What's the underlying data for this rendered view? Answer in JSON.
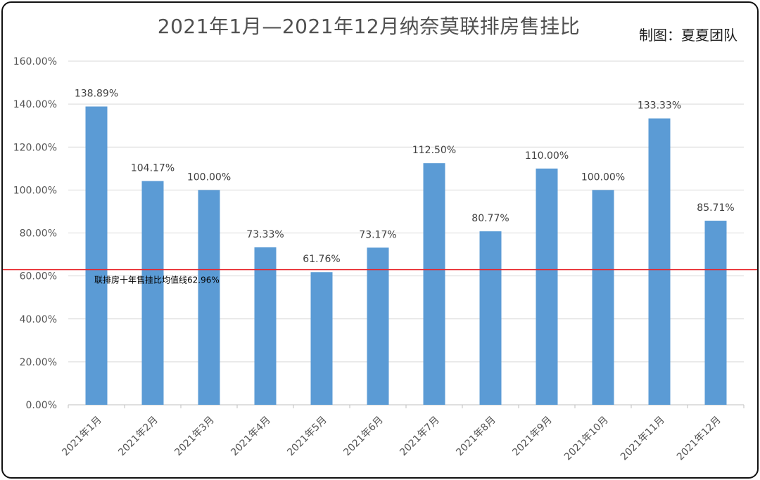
{
  "title": "2021年1月—2021年12月纳奈莫联排房售挂比",
  "credit": "制图：夏夏团队",
  "colors": {
    "bar": "#5b9bd5",
    "reference_line": "#e8262c",
    "grid": "#d9d9d9",
    "axis": "#bfbfbf"
  },
  "chart_data": {
    "type": "bar",
    "title": "2021年1月—2021年12月纳奈莫联排房售挂比",
    "categories": [
      "2021年1月",
      "2021年2月",
      "2021年3月",
      "2021年4月",
      "2021年5月",
      "2021年6月",
      "2021年7月",
      "2021年8月",
      "2021年9月",
      "2021年10月",
      "2021年11月",
      "2021年12月"
    ],
    "values": [
      138.89,
      104.17,
      100.0,
      73.33,
      61.76,
      73.17,
      112.5,
      80.77,
      110.0,
      100.0,
      133.33,
      85.71
    ],
    "data_labels": [
      "138.89%",
      "104.17%",
      "100.00%",
      "73.33%",
      "61.76%",
      "73.17%",
      "112.50%",
      "80.77%",
      "110.00%",
      "100.00%",
      "133.33%",
      "85.71%"
    ],
    "ylim": [
      0,
      160
    ],
    "yticks": [
      0,
      20,
      40,
      60,
      80,
      100,
      120,
      140,
      160
    ],
    "ytick_labels": [
      "0.00%",
      "20.00%",
      "40.00%",
      "60.00%",
      "80.00%",
      "100.00%",
      "120.00%",
      "140.00%",
      "160.00%"
    ],
    "grid": true,
    "reference_line": {
      "value": 62.96,
      "label": "联排房十年售挂比均值线62.96%"
    },
    "xlabel": "",
    "ylabel": ""
  }
}
